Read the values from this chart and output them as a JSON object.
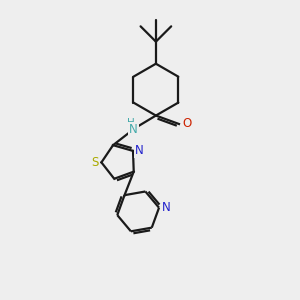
{
  "background_color": "#eeeeee",
  "bond_color": "#1a1a1a",
  "S_color": "#aaaa00",
  "N_color": "#2222cc",
  "O_color": "#cc2200",
  "NH_color": "#44aaaa",
  "line_width": 1.6,
  "figsize": [
    3.0,
    3.0
  ],
  "dpi": 100,
  "xlim": [
    0,
    10
  ],
  "ylim": [
    0,
    10
  ]
}
